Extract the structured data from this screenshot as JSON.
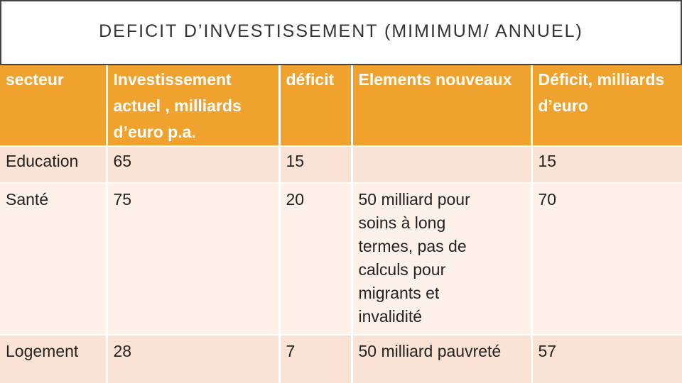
{
  "title": "DEFICIT D’INVESTISSEMENT (MIMIMUM/ ANNUEL)",
  "table": {
    "header": [
      "secteur",
      "Investissement actuel , milliards d’euro p.a.",
      "déficit",
      "Elements nouveaux",
      "Déficit, milliards d’euro"
    ],
    "rows": [
      [
        "Education",
        65,
        15,
        null,
        15
      ],
      [
        "Santé",
        75,
        20,
        "50 milliard pour soins à long termes, pas de calculs pour migrants et invalidité",
        70
      ],
      [
        "Logement",
        28,
        7,
        "50 milliard pauvreté",
        57
      ]
    ]
  }
}
